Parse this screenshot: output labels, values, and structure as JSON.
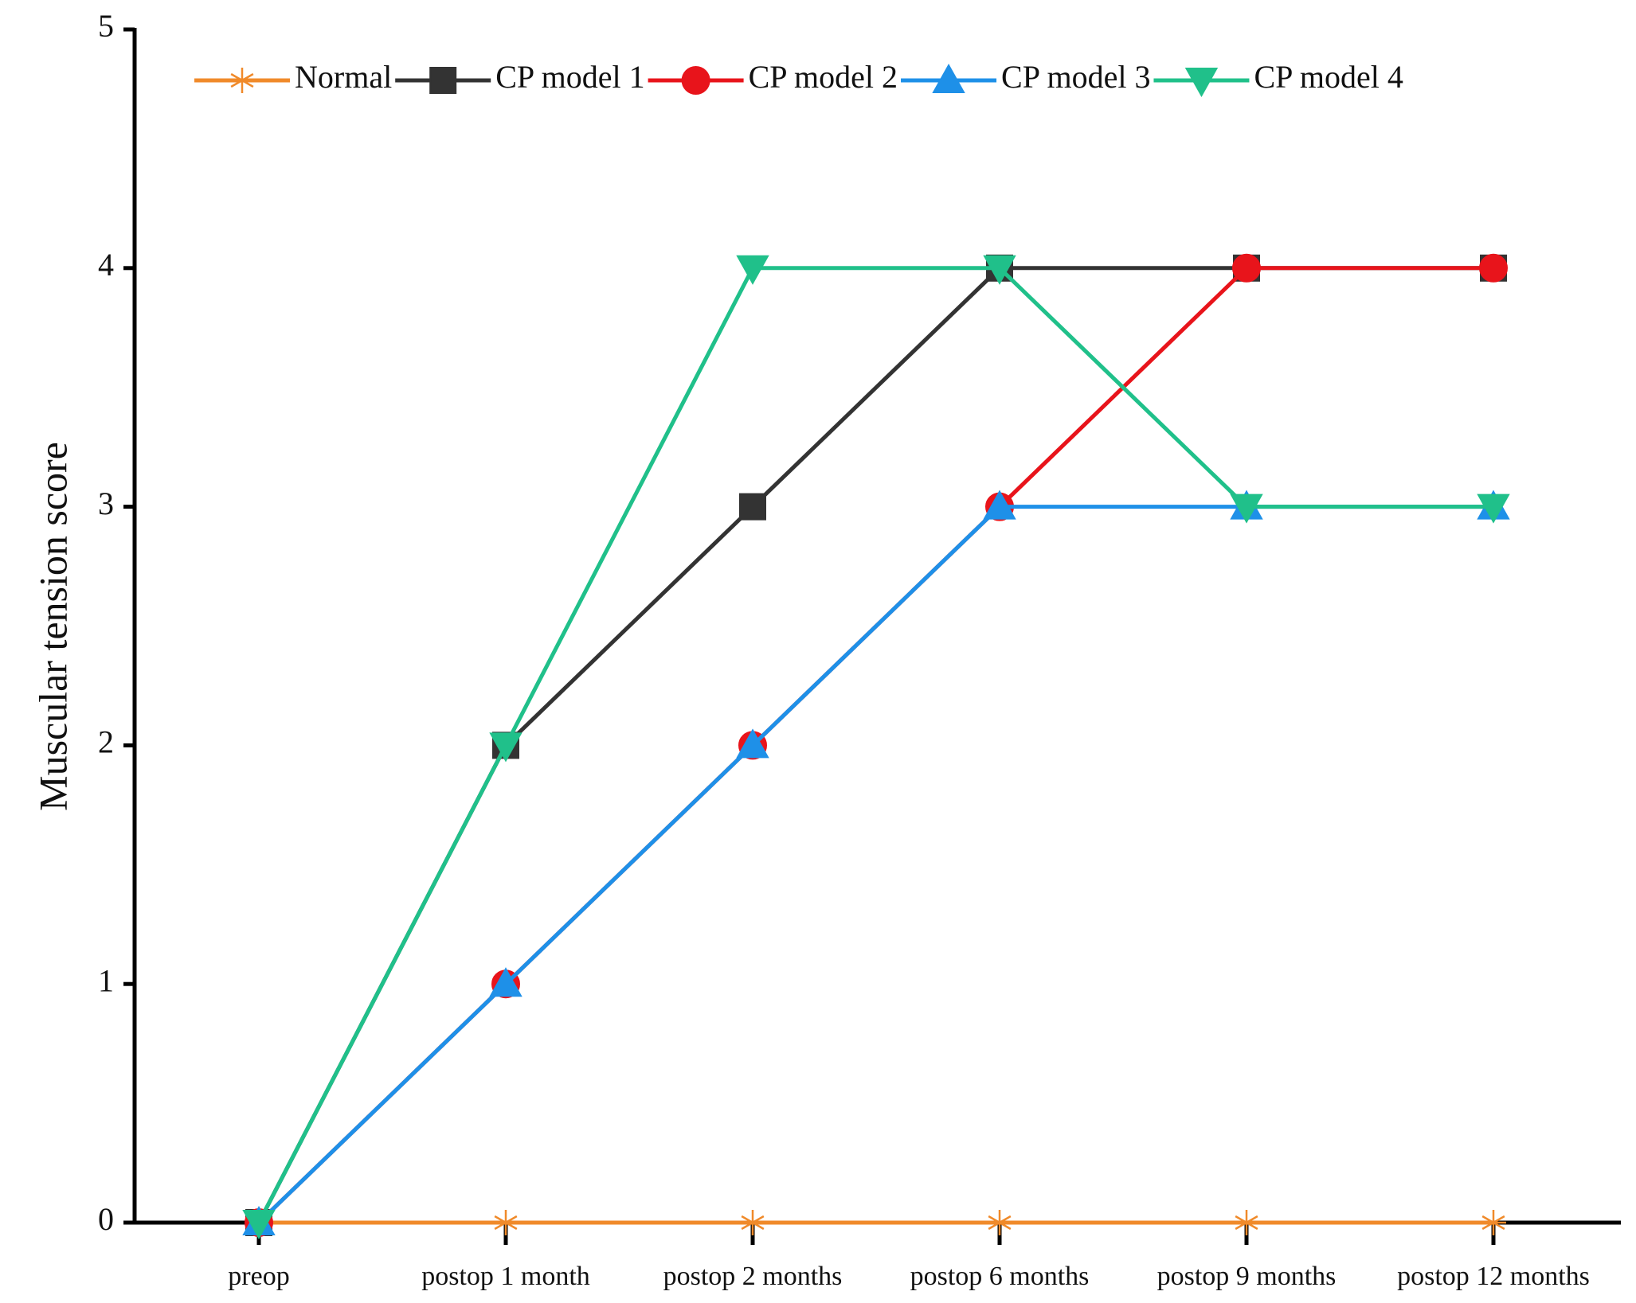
{
  "chart_data": {
    "type": "line",
    "y_label": "Muscular tension score",
    "categories": [
      "preop",
      "postop 1 month",
      "postop 2 months",
      "postop 6 months",
      "postop 9 months",
      "postop 12 months"
    ],
    "series": [
      {
        "name": "Normal",
        "color": "#f08a2a",
        "marker": "star",
        "values": [
          0,
          0,
          0,
          0,
          0,
          0
        ]
      },
      {
        "name": "CP model 1",
        "color": "#333333",
        "marker": "square",
        "values": [
          0,
          2,
          3,
          4,
          4,
          4
        ]
      },
      {
        "name": "CP model 2",
        "color": "#e8141b",
        "marker": "circle",
        "values": [
          0,
          1,
          2,
          3,
          4,
          4
        ]
      },
      {
        "name": "CP model 3",
        "color": "#1e90e8",
        "marker": "triangle-up",
        "values": [
          0,
          1,
          2,
          3,
          3,
          3
        ]
      },
      {
        "name": "CP model 4",
        "color": "#20c08a",
        "marker": "triangle-down",
        "values": [
          0,
          2,
          4,
          4,
          3,
          3
        ]
      }
    ],
    "ylim": [
      0,
      5
    ],
    "yticks": [
      0,
      1,
      2,
      3,
      4,
      5
    ],
    "grid": false,
    "legend": "top"
  }
}
